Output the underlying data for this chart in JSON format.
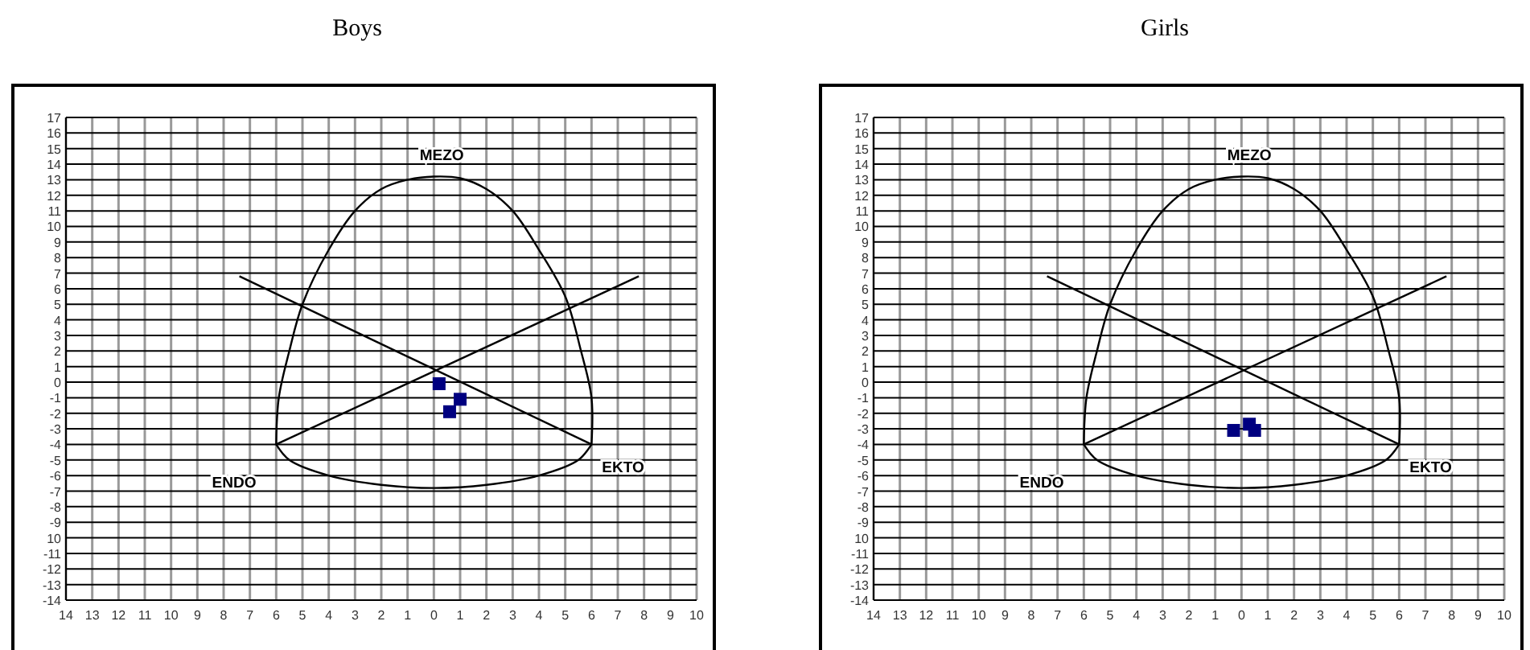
{
  "chart_data": [
    {
      "type": "scatter",
      "title": "Boys",
      "xlim": [
        -14,
        10
      ],
      "ylim": [
        -14,
        17
      ],
      "xticks": [
        {
          "value": -14,
          "label": "14"
        },
        {
          "value": -13,
          "label": "13"
        },
        {
          "value": -12,
          "label": "12"
        },
        {
          "value": -11,
          "label": "11"
        },
        {
          "value": -10,
          "label": "10"
        },
        {
          "value": -9,
          "label": "9"
        },
        {
          "value": -8,
          "label": "8"
        },
        {
          "value": -7,
          "label": "7"
        },
        {
          "value": -6,
          "label": "6"
        },
        {
          "value": -5,
          "label": "5"
        },
        {
          "value": -4,
          "label": "4"
        },
        {
          "value": -3,
          "label": "3"
        },
        {
          "value": -2,
          "label": "2"
        },
        {
          "value": -1,
          "label": "1"
        },
        0,
        1,
        2,
        3,
        4,
        5,
        6,
        7,
        8,
        9,
        10
      ],
      "yticks": [
        -14,
        -13,
        -12,
        -11,
        {
          "value": -10,
          "label": "10"
        },
        -9,
        -8,
        -7,
        -6,
        -5,
        -4,
        -3,
        -2,
        -1,
        0,
        1,
        2,
        3,
        4,
        5,
        6,
        7,
        8,
        9,
        10,
        11,
        12,
        13,
        14,
        15,
        16,
        17
      ],
      "grid": true,
      "annotations": [
        "MEZO",
        "ENDO",
        "EKTO"
      ],
      "series": [
        {
          "type": "line",
          "color": "#000000",
          "x": [
            -7.4,
            6
          ],
          "values": [
            6.8,
            -4
          ]
        },
        {
          "type": "line",
          "color": "#000000",
          "x": [
            -6,
            7.8
          ],
          "values": [
            -4,
            6.8
          ]
        },
        {
          "type": "scatter",
          "color": "#000080",
          "marker": "square",
          "x": [
            0.2,
            1,
            0.6
          ],
          "values": [
            -0.1,
            -1.1,
            -1.9
          ]
        }
      ]
    },
    {
      "type": "scatter",
      "title": "Girls",
      "xlim": [
        -14,
        10
      ],
      "ylim": [
        -14,
        17
      ],
      "xticks": [
        {
          "value": -14,
          "label": "14"
        },
        {
          "value": -13,
          "label": "13"
        },
        {
          "value": -12,
          "label": "12"
        },
        {
          "value": -11,
          "label": "11"
        },
        {
          "value": -10,
          "label": "10"
        },
        {
          "value": -9,
          "label": "9"
        },
        {
          "value": -8,
          "label": "8"
        },
        {
          "value": -7,
          "label": "7"
        },
        {
          "value": -6,
          "label": "6"
        },
        {
          "value": -5,
          "label": "5"
        },
        {
          "value": -4,
          "label": "4"
        },
        {
          "value": -3,
          "label": "3"
        },
        {
          "value": -2,
          "label": "2"
        },
        {
          "value": -1,
          "label": "1"
        },
        0,
        1,
        2,
        3,
        4,
        5,
        6,
        7,
        8,
        9,
        10
      ],
      "yticks": [
        -14,
        -13,
        -12,
        -11,
        {
          "value": -10,
          "label": "10"
        },
        -9,
        -8,
        -7,
        -6,
        -5,
        -4,
        -3,
        -2,
        -1,
        0,
        1,
        2,
        3,
        4,
        5,
        6,
        7,
        8,
        9,
        10,
        11,
        12,
        13,
        14,
        15,
        16,
        17
      ],
      "grid": true,
      "annotations": [
        "MEZO",
        "ENDO",
        "EKTO"
      ],
      "series": [
        {
          "type": "line",
          "color": "#000000",
          "x": [
            -7.4,
            6
          ],
          "values": [
            6.8,
            -4
          ]
        },
        {
          "type": "line",
          "color": "#000000",
          "x": [
            -6,
            7.8
          ],
          "values": [
            -4,
            6.8
          ]
        },
        {
          "type": "scatter",
          "color": "#000080",
          "marker": "square",
          "x": [
            -0.3,
            0.3,
            0.5
          ],
          "values": [
            -3.1,
            -2.7,
            -3.1
          ]
        }
      ]
    }
  ]
}
